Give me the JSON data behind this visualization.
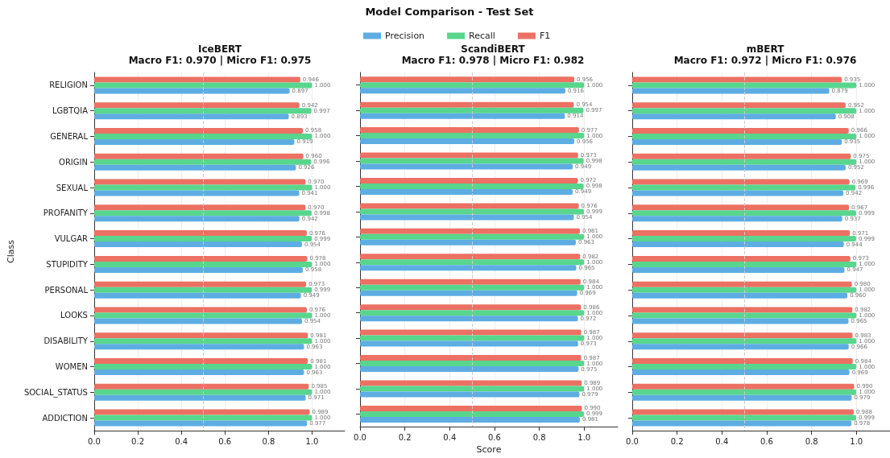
{
  "chart_data": [
    {
      "type": "bar",
      "orientation": "horizontal",
      "title": "IceBERT",
      "subtitle": "Macro F1: 0.970 | Micro F1: 0.975",
      "ylabel": "Class",
      "categories": [
        "RELIGION",
        "LGBTQIA",
        "GENERAL",
        "ORIGIN",
        "SEXUAL",
        "PROFANITY",
        "VULGAR",
        "STUPIDITY",
        "PERSONAL",
        "LOOKS",
        "DISABILITY",
        "WOMEN",
        "SOCIAL_STATUS",
        "ADDICTION"
      ],
      "series": [
        {
          "color": "#5dade2",
          "values": [
            0.897,
            0.893,
            0.919,
            0.926,
            0.941,
            0.942,
            0.954,
            0.958,
            0.949,
            0.954,
            0.963,
            0.963,
            0.971,
            0.977
          ],
          "value_labels": [
            "0.897",
            "0.893",
            "0.919",
            "0.926",
            "0.941",
            "0.942",
            "0.954",
            "0.958",
            "0.949",
            "0.954",
            "0.963",
            "0.963",
            "0.971",
            "0.977"
          ]
        },
        {
          "color": "#58d68d",
          "values": [
            1.0,
            0.997,
            1.0,
            0.996,
            1.0,
            0.998,
            0.999,
            1.0,
            0.999,
            1.0,
            1.0,
            1.0,
            1.0,
            1.0
          ],
          "value_labels": [
            "1.000",
            "0.997",
            "1.000",
            "0.996",
            "1.000",
            "0.998",
            "0.999",
            "1.000",
            "0.999",
            "1.000",
            "1.000",
            "1.000",
            "1.000",
            "1.000"
          ]
        },
        {
          "color": "#ec7063",
          "values": [
            0.946,
            0.942,
            0.958,
            0.96,
            0.97,
            0.97,
            0.976,
            0.978,
            0.973,
            0.976,
            0.981,
            0.981,
            0.985,
            0.989
          ],
          "value_labels": [
            "0.946",
            "0.942",
            "0.958",
            "0.960",
            "0.970",
            "0.970",
            "0.976",
            "0.978",
            "0.973",
            "0.976",
            "0.981",
            "0.981",
            "0.985",
            "0.989"
          ]
        }
      ],
      "xlim": [
        0,
        1.15
      ],
      "xticks": [
        {
          "value": 0,
          "label": "0.0"
        },
        {
          "value": 0.2,
          "label": "0.2"
        },
        {
          "value": 0.4,
          "label": "0.4"
        },
        {
          "value": 0.6,
          "label": "0.6"
        },
        {
          "value": 0.8,
          "label": "0.8"
        },
        {
          "value": 1,
          "label": "1.0"
        }
      ],
      "ref_lines": [
        {
          "axis": "x",
          "value": 0.5,
          "label": null,
          "color": "#cccccc",
          "line_style": "dashed"
        }
      ],
      "grid": "x"
    },
    {
      "type": "bar",
      "orientation": "horizontal",
      "title": "ScandiBERT",
      "subtitle": "Macro F1: 0.978 | Micro F1: 0.982",
      "xlabel": "Score",
      "annotations": [
        "Model Comparison - Test Set"
      ],
      "legend": "top",
      "categories": [
        null,
        null,
        null,
        null,
        null,
        null,
        null,
        null,
        null,
        null,
        null,
        null,
        null,
        null
      ],
      "series": [
        {
          "name": "Precision",
          "color": "#5dade2",
          "values": [
            0.916,
            0.914,
            0.956,
            0.949,
            0.949,
            0.954,
            0.963,
            0.965,
            0.969,
            0.972,
            0.973,
            0.975,
            0.979,
            0.981
          ],
          "value_labels": [
            "0.916",
            "0.914",
            "0.956",
            "0.949",
            "0.949",
            "0.954",
            "0.963",
            "0.965",
            "0.969",
            "0.972",
            "0.973",
            "0.975",
            "0.979",
            "0.981"
          ]
        },
        {
          "name": "Recall",
          "color": "#58d68d",
          "values": [
            1.0,
            0.997,
            1.0,
            0.998,
            0.998,
            0.999,
            1.0,
            1.0,
            1.0,
            1.0,
            1.0,
            1.0,
            1.0,
            0.999
          ],
          "value_labels": [
            "1.000",
            "0.997",
            "1.000",
            "0.998",
            "0.998",
            "0.999",
            "1.000",
            "1.000",
            "1.000",
            "1.000",
            "1.000",
            "1.000",
            "1.000",
            "0.999"
          ]
        },
        {
          "name": "F1",
          "color": "#ec7063",
          "values": [
            0.956,
            0.954,
            0.977,
            0.973,
            0.972,
            0.976,
            0.981,
            0.982,
            0.984,
            0.986,
            0.987,
            0.987,
            0.989,
            0.99
          ],
          "value_labels": [
            "0.956",
            "0.954",
            "0.977",
            "0.973",
            "0.972",
            "0.976",
            "0.981",
            "0.982",
            "0.984",
            "0.986",
            "0.987",
            "0.987",
            "0.989",
            "0.990"
          ]
        }
      ],
      "xlim": [
        0,
        1.15
      ],
      "xticks": [
        {
          "value": 0,
          "label": "0.0"
        },
        {
          "value": 0.2,
          "label": "0.2"
        },
        {
          "value": 0.4,
          "label": "0.4"
        },
        {
          "value": 0.6,
          "label": "0.6"
        },
        {
          "value": 0.8,
          "label": "0.8"
        },
        {
          "value": 1,
          "label": "1.0"
        }
      ],
      "ref_lines": [
        {
          "axis": "x",
          "value": 0.5,
          "label": null,
          "color": "#cccccc",
          "line_style": "dashed"
        }
      ],
      "grid": "x",
      "tick_labels": "x"
    },
    {
      "type": "bar",
      "orientation": "horizontal",
      "title": "mBERT",
      "subtitle": "Macro F1: 0.972 | Micro F1: 0.976",
      "categories": [
        null,
        null,
        null,
        null,
        null,
        null,
        null,
        null,
        null,
        null,
        null,
        null,
        null,
        null
      ],
      "series": [
        {
          "color": "#5dade2",
          "values": [
            0.879,
            0.908,
            0.935,
            0.952,
            0.942,
            0.937,
            0.944,
            0.947,
            0.96,
            0.965,
            0.966,
            0.969,
            0.979,
            0.978
          ],
          "value_labels": [
            "0.879",
            "0.908",
            "0.935",
            "0.952",
            "0.942",
            "0.937",
            "0.944",
            "0.947",
            "0.960",
            "0.965",
            "0.966",
            "0.969",
            "0.979",
            "0.978"
          ]
        },
        {
          "color": "#58d68d",
          "values": [
            1.0,
            1.0,
            1.0,
            1.0,
            0.996,
            0.999,
            0.999,
            1.0,
            1.0,
            1.0,
            1.0,
            1.0,
            1.0,
            0.999
          ],
          "value_labels": [
            "1.000",
            "1.000",
            "1.000",
            "1.000",
            "0.996",
            "0.999",
            "0.999",
            "1.000",
            "1.000",
            "1.000",
            "1.000",
            "1.000",
            "1.000",
            "0.999"
          ]
        },
        {
          "color": "#ec7063",
          "values": [
            0.935,
            0.952,
            0.966,
            0.975,
            0.969,
            0.967,
            0.971,
            0.973,
            0.98,
            0.982,
            0.983,
            0.984,
            0.99,
            0.988
          ],
          "value_labels": [
            "0.935",
            "0.952",
            "0.966",
            "0.975",
            "0.969",
            "0.967",
            "0.971",
            "0.973",
            "0.980",
            "0.982",
            "0.983",
            "0.984",
            "0.990",
            "0.988"
          ]
        }
      ],
      "xlim": [
        0,
        1.15
      ],
      "xticks": [
        {
          "value": 0,
          "label": "0.0"
        },
        {
          "value": 0.2,
          "label": "0.2"
        },
        {
          "value": 0.4,
          "label": "0.4"
        },
        {
          "value": 0.6,
          "label": "0.6"
        },
        {
          "value": 0.8,
          "label": "0.8"
        },
        {
          "value": 1,
          "label": "1.0"
        }
      ],
      "ref_lines": [
        {
          "axis": "x",
          "value": 0.5,
          "label": null,
          "color": "#cccccc",
          "line_style": "dashed"
        }
      ],
      "grid": "x",
      "tick_labels": "x"
    }
  ]
}
